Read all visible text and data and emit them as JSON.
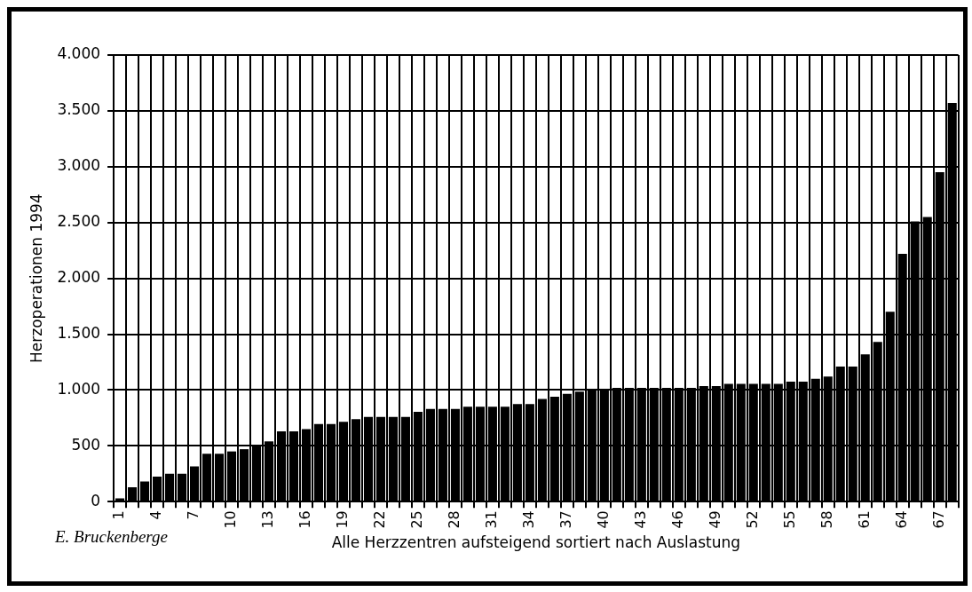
{
  "chart_data": {
    "type": "bar",
    "ylabel": "Herzoperationen 1994",
    "xlabel": "Alle Herzzentren aufsteigend sortiert nach Auslastung",
    "annotations": [
      "E. Bruckenberge"
    ],
    "categories": [
      "1",
      null,
      null,
      "4",
      null,
      null,
      "7",
      null,
      null,
      "10",
      null,
      null,
      "13",
      null,
      null,
      "16",
      null,
      null,
      "19",
      null,
      null,
      "22",
      null,
      null,
      "25",
      null,
      null,
      "28",
      null,
      null,
      "31",
      null,
      null,
      "34",
      null,
      null,
      "37",
      null,
      null,
      "40",
      null,
      null,
      "43",
      null,
      null,
      "46",
      null,
      null,
      "49",
      null,
      null,
      "52",
      null,
      null,
      "55",
      null,
      null,
      "58",
      null,
      null,
      "61",
      null,
      null,
      "64",
      null,
      null,
      "67",
      null
    ],
    "values": [
      30,
      130,
      180,
      225,
      250,
      250,
      315,
      430,
      430,
      450,
      470,
      510,
      540,
      630,
      630,
      650,
      695,
      695,
      715,
      740,
      760,
      760,
      760,
      760,
      805,
      830,
      830,
      830,
      850,
      850,
      850,
      850,
      875,
      875,
      920,
      940,
      965,
      985,
      1005,
      1005,
      1020,
      1020,
      1020,
      1020,
      1020,
      1020,
      1020,
      1035,
      1035,
      1055,
      1055,
      1055,
      1055,
      1055,
      1075,
      1075,
      1100,
      1120,
      1210,
      1210,
      1320,
      1430,
      1700,
      2220,
      2510,
      2550,
      2950,
      3570
    ],
    "color": "#000000",
    "ylim": [
      0,
      4000
    ],
    "yticks": [
      0,
      500,
      {
        "value": 1000,
        "label": "1.000"
      },
      {
        "value": 1500,
        "label": "1.500"
      },
      {
        "value": 2000,
        "label": "2.000"
      },
      {
        "value": 2500,
        "label": "2.500"
      },
      {
        "value": 3000,
        "label": "3.000"
      },
      {
        "value": 3500,
        "label": "3.500"
      },
      {
        "value": 4000,
        "label": "4.000"
      }
    ],
    "grid": true
  }
}
